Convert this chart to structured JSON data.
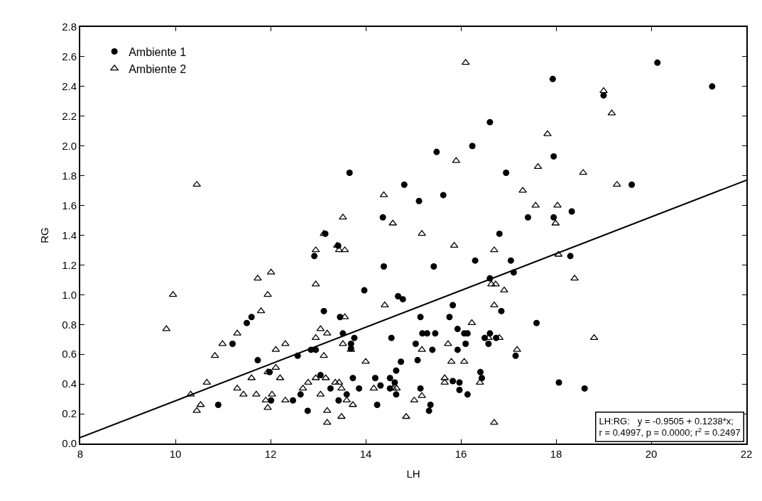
{
  "chart_data": {
    "type": "scatter",
    "xlabel": "LH",
    "ylabel": "RG",
    "xlim": [
      8,
      22
    ],
    "xticks": [
      8,
      10,
      12,
      14,
      16,
      18,
      20,
      22
    ],
    "ylim": [
      0,
      2.8
    ],
    "yticks": [
      {
        "value": 0,
        "label": "0.0"
      },
      {
        "value": 0.2,
        "label": "0.2"
      },
      {
        "value": 0.4,
        "label": "0.4"
      },
      {
        "value": 0.6,
        "label": "0.6"
      },
      {
        "value": 0.8,
        "label": "0.8"
      },
      {
        "value": 1.0,
        "label": "1.0"
      },
      {
        "value": 1.2,
        "label": "1.2"
      },
      {
        "value": 1.4,
        "label": "1.4"
      },
      {
        "value": 1.6,
        "label": "1.6"
      },
      {
        "value": 1.8,
        "label": "1.8"
      },
      {
        "value": 2.0,
        "label": "2.0"
      },
      {
        "value": 2.2,
        "label": "2.2"
      },
      {
        "value": 2.4,
        "label": "2.4"
      },
      {
        "value": 2.6,
        "label": "2.6"
      },
      {
        "value": 2.8,
        "label": "2.8"
      }
    ],
    "legend": "top left",
    "series": [
      {
        "name": "Ambiente 1",
        "color": "#000000",
        "marker": "circle",
        "x": [
          11.6,
          11.5,
          11.2,
          11.73,
          12.57,
          11.98,
          12.01,
          12.47,
          12.63,
          10.9,
          16.61,
          16.24,
          15.49,
          13.66,
          16.95,
          14.81,
          15.12,
          15.63,
          14.36,
          13.15,
          16.81,
          13.42,
          12.92,
          16.3,
          17.05,
          14.38,
          15.43,
          17.11,
          16.61,
          13.97,
          14.68,
          14.78,
          15.83,
          13.12,
          16.85,
          13.46,
          15.15,
          15.76,
          15.93,
          13.52,
          13.76,
          14.54,
          15.19,
          15.29,
          15.46,
          16.07,
          16.14,
          16.5,
          16.61,
          16.74,
          16.58,
          13.69,
          13.69,
          15.05,
          16.1,
          12.85,
          12.95,
          15.4,
          15.93,
          17.15,
          14.74,
          15.09,
          14.64,
          13.05,
          13.73,
          14.2,
          14.51,
          14.31,
          14.61,
          16.41,
          16.44,
          15.83,
          15.97,
          13.26,
          13.86,
          14.51,
          15.15,
          13.6,
          14.64,
          15.97,
          16.14,
          13.43,
          14.24,
          15.36,
          15.33,
          12.78,
          20.13,
          21.28,
          17.93,
          19.0,
          17.95,
          19.59,
          17.41,
          17.95,
          18.33,
          18.3,
          17.59,
          18.06,
          18.6
        ],
        "values": [
          0.85,
          0.81,
          0.67,
          0.56,
          0.59,
          0.48,
          0.29,
          0.29,
          0.33,
          0.26,
          2.16,
          2.0,
          1.96,
          1.82,
          1.82,
          1.74,
          1.63,
          1.67,
          1.52,
          1.41,
          1.41,
          1.33,
          1.26,
          1.23,
          1.23,
          1.19,
          1.19,
          1.15,
          1.11,
          1.03,
          0.99,
          0.97,
          0.93,
          0.89,
          0.89,
          0.85,
          0.85,
          0.85,
          0.77,
          0.74,
          0.71,
          0.71,
          0.74,
          0.74,
          0.74,
          0.74,
          0.74,
          0.71,
          0.74,
          0.71,
          0.67,
          0.67,
          0.64,
          0.67,
          0.67,
          0.63,
          0.63,
          0.63,
          0.63,
          0.59,
          0.55,
          0.56,
          0.49,
          0.46,
          0.44,
          0.44,
          0.44,
          0.39,
          0.41,
          0.48,
          0.44,
          0.42,
          0.41,
          0.37,
          0.37,
          0.37,
          0.37,
          0.33,
          0.33,
          0.36,
          0.33,
          0.29,
          0.26,
          0.26,
          0.22,
          0.22,
          2.56,
          2.4,
          2.45,
          2.34,
          1.93,
          1.74,
          1.52,
          1.52,
          1.56,
          1.26,
          0.81,
          0.41,
          0.37
        ]
      },
      {
        "name": "Ambiente 2",
        "color": "#000000",
        "marker": "triangle",
        "x": [
          10.45,
          9.95,
          9.81,
          11.73,
          12.01,
          11.94,
          11.8,
          11.3,
          10.99,
          10.83,
          12.31,
          12.11,
          12.11,
          11.94,
          11.6,
          12.2,
          10.66,
          10.32,
          11.3,
          11.43,
          11.7,
          11.9,
          12.03,
          12.31,
          11.94,
          10.53,
          10.45,
          12.68,
          16.1,
          15.9,
          17.3,
          14.38,
          13.52,
          14.57,
          13.12,
          15.18,
          13.4,
          15.86,
          12.95,
          13.44,
          13.56,
          16.7,
          12.95,
          16.64,
          16.73,
          16.91,
          14.4,
          16.7,
          13.56,
          16.23,
          13.05,
          12.95,
          13.19,
          13.52,
          13.69,
          15.18,
          15.73,
          16.58,
          16.81,
          17.18,
          13.12,
          14.0,
          15.8,
          16.07,
          12.95,
          13.16,
          12.79,
          13.36,
          13.44,
          13.49,
          13.05,
          14.17,
          14.57,
          14.65,
          15.66,
          15.66,
          16.4,
          13.6,
          13.73,
          15.02,
          15.18,
          13.19,
          13.49,
          13.19,
          14.85,
          16.7,
          19.0,
          19.17,
          17.82,
          17.62,
          18.57,
          19.28,
          17.57,
          18.03,
          17.99,
          18.05,
          18.39,
          18.8
        ],
        "values": [
          1.74,
          1.0,
          0.77,
          1.11,
          1.15,
          1.0,
          0.89,
          0.74,
          0.67,
          0.59,
          0.67,
          0.63,
          0.51,
          0.48,
          0.44,
          0.44,
          0.41,
          0.33,
          0.37,
          0.33,
          0.33,
          0.29,
          0.33,
          0.29,
          0.24,
          0.26,
          0.22,
          0.37,
          2.56,
          1.9,
          1.7,
          1.67,
          1.52,
          1.48,
          1.41,
          1.41,
          1.33,
          1.33,
          1.3,
          1.3,
          1.3,
          1.3,
          1.07,
          1.07,
          1.07,
          1.03,
          0.93,
          0.93,
          0.85,
          0.81,
          0.77,
          0.71,
          0.74,
          0.67,
          0.63,
          0.63,
          0.67,
          0.71,
          0.71,
          0.63,
          0.59,
          0.55,
          0.55,
          0.55,
          0.44,
          0.44,
          0.41,
          0.41,
          0.41,
          0.37,
          0.33,
          0.37,
          0.37,
          0.37,
          0.44,
          0.41,
          0.41,
          0.29,
          0.26,
          0.29,
          0.32,
          0.22,
          0.18,
          0.14,
          0.18,
          0.14,
          2.37,
          2.22,
          2.08,
          1.86,
          1.82,
          1.74,
          1.6,
          1.6,
          1.48,
          1.27,
          1.11,
          0.71
        ]
      },
      {
        "type": "line",
        "color": "#000000",
        "marker": "none",
        "line_style": "solid",
        "x": [
          8,
          22
        ],
        "values": [
          0.04,
          1.77
        ]
      }
    ],
    "annotations": [
      "LH:RG:   y = -0.9505 + 0.1238*x;\nr = 0.4997, p = 0.0000; r$^{2}$ = 0.2497"
    ]
  }
}
